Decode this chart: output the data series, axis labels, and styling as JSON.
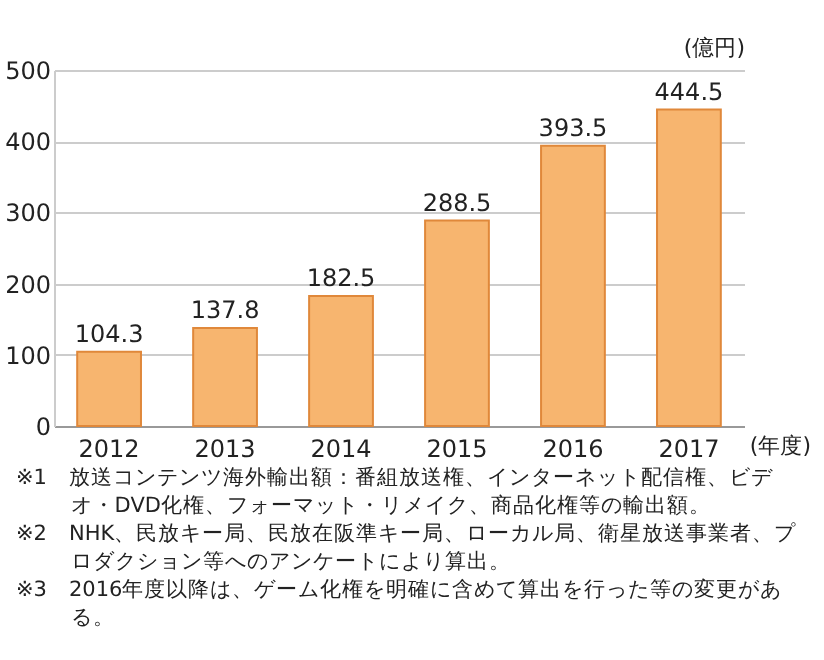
{
  "chart_data": {
    "type": "bar",
    "ylabel": "(億円)",
    "xlabel": "(年度)",
    "categories": [
      "2012",
      "2013",
      "2014",
      "2015",
      "2016",
      "2017"
    ],
    "values": [
      104.3,
      137.8,
      182.5,
      288.5,
      393.5,
      444.5
    ],
    "color": "#f7b56f",
    "ylim": [
      0,
      500
    ],
    "yticks": [
      0,
      100,
      200,
      300,
      400,
      500
    ],
    "grid": "y",
    "data_labels": true,
    "annotations": [
      "※1　放送コンテンツ海外輸出額：番組放送権、インターネット配信権、ビデオ・DVD化権、フォーマット・リメイク、商品化権等の輸出額。",
      "※2　NHK、民放キー局、民放在阪準キー局、ローカル局、衛星放送事業者、プロダクション等へのアンケートにより算出。",
      "※3　2016年度以降は、ゲーム化権を明確に含めて算出を行った等の変更がある。"
    ]
  }
}
